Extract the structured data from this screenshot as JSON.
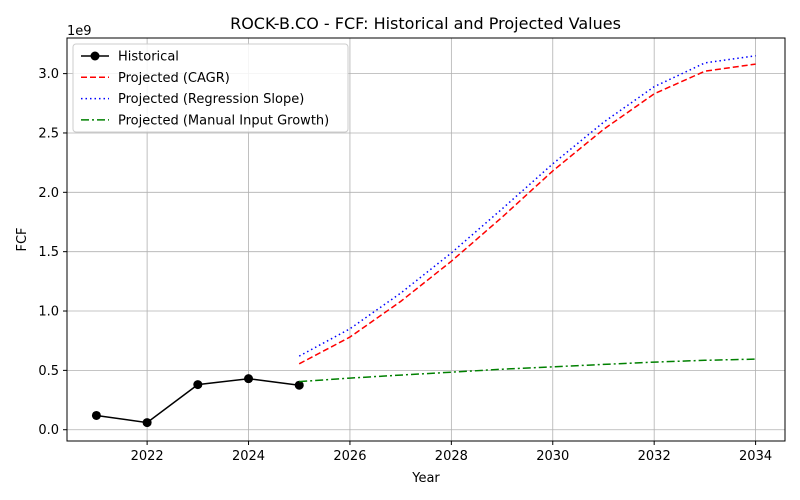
{
  "chart_data": {
    "type": "line",
    "title": "ROCK-B.CO - FCF: Historical and Projected Values",
    "xlabel": "Year",
    "ylabel": "FCF",
    "y_offset_label": "1e9",
    "xlim": [
      2020.42,
      2034.58
    ],
    "ylim": [
      -0.095,
      3.3
    ],
    "x_ticks": [
      2022,
      2024,
      2026,
      2028,
      2030,
      2032,
      2034
    ],
    "x_tick_labels": [
      "2022",
      "2024",
      "2026",
      "2028",
      "2030",
      "2032",
      "2034"
    ],
    "y_ticks": [
      0.0,
      0.5,
      1.0,
      1.5,
      2.0,
      2.5,
      3.0
    ],
    "y_tick_labels": [
      "0.0",
      "0.5",
      "1.0",
      "1.5",
      "2.0",
      "2.5",
      "3.0"
    ],
    "grid": true,
    "legend_position": "upper-left",
    "series": [
      {
        "name": "Historical",
        "color": "#000000",
        "style": "solid",
        "marker": "circle",
        "x": [
          2021,
          2022,
          2023,
          2024,
          2025
        ],
        "y": [
          0.12,
          0.06,
          0.38,
          0.43,
          0.375
        ]
      },
      {
        "name": "Projected (CAGR)",
        "color": "#ff0000",
        "style": "dashed",
        "marker": "none",
        "x": [
          2025,
          2026,
          2027,
          2028,
          2029,
          2030,
          2031,
          2032,
          2033,
          2034
        ],
        "y": [
          0.555,
          0.78,
          1.08,
          1.42,
          1.79,
          2.18,
          2.53,
          2.83,
          3.02,
          3.08
        ]
      },
      {
        "name": "Projected (Regression Slope)",
        "color": "#0000ff",
        "style": "dotted",
        "marker": "none",
        "x": [
          2025,
          2026,
          2027,
          2028,
          2029,
          2030,
          2031,
          2032,
          2033,
          2034
        ],
        "y": [
          0.62,
          0.85,
          1.15,
          1.49,
          1.86,
          2.24,
          2.59,
          2.89,
          3.09,
          3.15
        ]
      },
      {
        "name": "Projected (Manual Input Growth)",
        "color": "#008000",
        "style": "dashdot",
        "marker": "none",
        "x": [
          2025,
          2026,
          2027,
          2028,
          2029,
          2030,
          2031,
          2032,
          2033,
          2034
        ],
        "y": [
          0.405,
          0.435,
          0.46,
          0.485,
          0.51,
          0.53,
          0.55,
          0.57,
          0.585,
          0.595
        ]
      }
    ]
  }
}
